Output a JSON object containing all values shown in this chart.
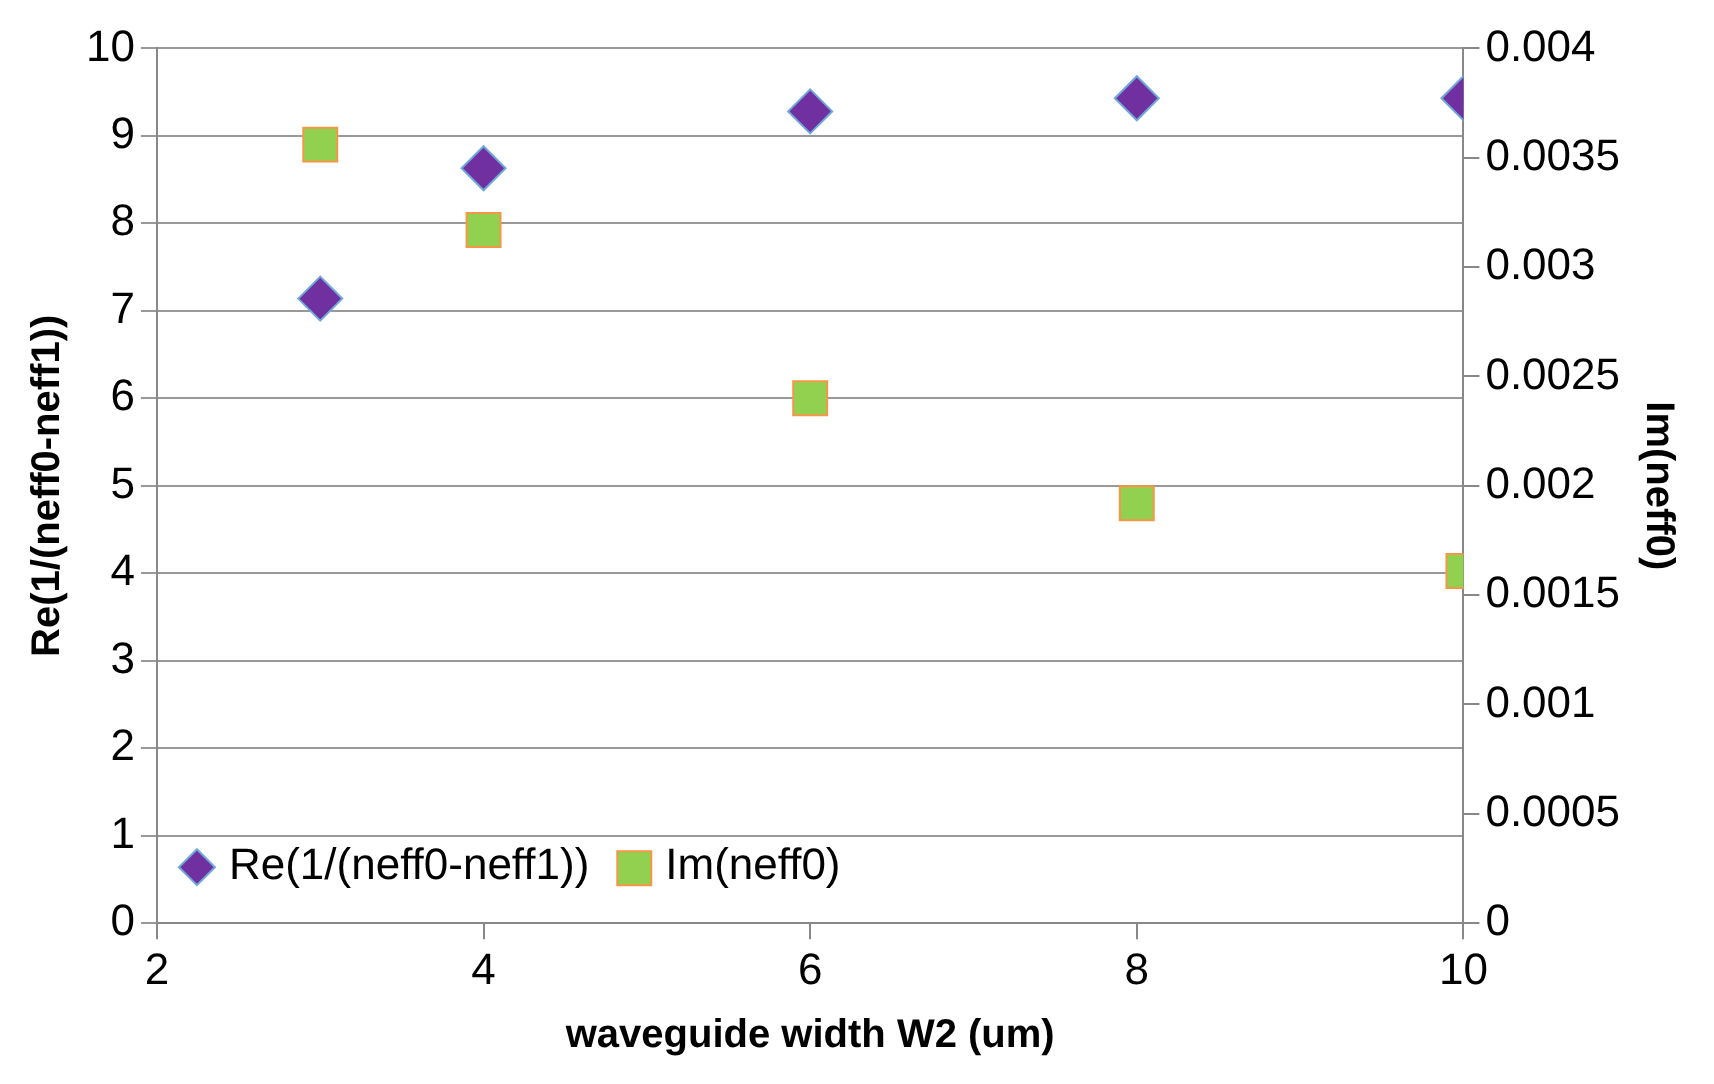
{
  "chart_data": {
    "type": "scatter",
    "xlabel": "waveguide width W2 (um)",
    "ylabel": "Re(1/(neff0-neff1))",
    "y2label": "Im(neff0)",
    "x": [
      3,
      4,
      6,
      8,
      10
    ],
    "series": [
      {
        "name": "Re(1/(neff0-neff1))",
        "color": "#7030a0",
        "values": [
          7.14,
          8.63,
          9.28,
          9.43,
          9.43
        ],
        "marker": "diamond"
      },
      {
        "name": "Im(neff0)",
        "color": "#92d050",
        "values": [
          0.00356,
          0.00317,
          0.0024,
          0.00192,
          0.00161
        ],
        "marker": "square",
        "axis": "y2"
      }
    ],
    "xlim": [
      2,
      10
    ],
    "xticks": [
      2,
      4,
      6,
      8,
      10
    ],
    "ylim": [
      0,
      10
    ],
    "yticks": [
      0,
      1,
      2,
      3,
      4,
      5,
      6,
      7,
      8,
      9,
      10
    ],
    "y2lim": [
      0,
      0.004
    ],
    "y2ticks": [
      0,
      0.0005,
      0.001,
      0.0015,
      0.002,
      0.0025,
      0.003,
      0.0035,
      0.004
    ],
    "grid": "y",
    "legend": "bottom left"
  }
}
